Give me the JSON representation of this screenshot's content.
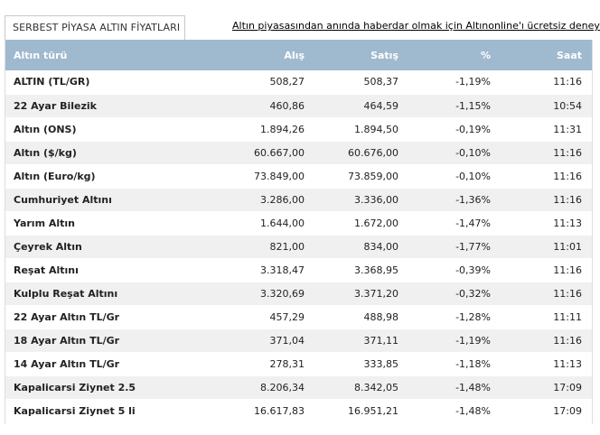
{
  "header": {
    "tab_title": "SERBEST PİYASA ALTIN FİYATLARI",
    "promo_link": "Altın piyasasından anında haberdar olmak için Altınonline'ı ücretsiz deneyin"
  },
  "table": {
    "columns": [
      "Altın türü",
      "Alış",
      "Satış",
      "%",
      "Saat"
    ],
    "rows": [
      {
        "name": "ALTIN (TL/GR)",
        "alis": "508,27",
        "satis": "508,37",
        "pct": "-1,19%",
        "saat": "11:16"
      },
      {
        "name": "22 Ayar Bilezik",
        "alis": "460,86",
        "satis": "464,59",
        "pct": "-1,15%",
        "saat": "10:54"
      },
      {
        "name": "Altın (ONS)",
        "alis": "1.894,26",
        "satis": "1.894,50",
        "pct": "-0,19%",
        "saat": "11:31"
      },
      {
        "name": "Altın ($/kg)",
        "alis": "60.667,00",
        "satis": "60.676,00",
        "pct": "-0,10%",
        "saat": "11:16"
      },
      {
        "name": "Altın (Euro/kg)",
        "alis": "73.849,00",
        "satis": "73.859,00",
        "pct": "-0,10%",
        "saat": "11:16"
      },
      {
        "name": "Cumhuriyet Altını",
        "alis": "3.286,00",
        "satis": "3.336,00",
        "pct": "-1,36%",
        "saat": "11:16"
      },
      {
        "name": "Yarım Altın",
        "alis": "1.644,00",
        "satis": "1.672,00",
        "pct": "-1,47%",
        "saat": "11:13"
      },
      {
        "name": "Çeyrek Altın",
        "alis": "821,00",
        "satis": "834,00",
        "pct": "-1,77%",
        "saat": "11:01"
      },
      {
        "name": "Reşat Altını",
        "alis": "3.318,47",
        "satis": "3.368,95",
        "pct": "-0,39%",
        "saat": "11:16"
      },
      {
        "name": "Kulplu Reşat Altını",
        "alis": "3.320,69",
        "satis": "3.371,20",
        "pct": "-0,32%",
        "saat": "11:16"
      },
      {
        "name": "22 Ayar Altın TL/Gr",
        "alis": "457,29",
        "satis": "488,98",
        "pct": "-1,28%",
        "saat": "11:11"
      },
      {
        "name": "18 Ayar Altın TL/Gr",
        "alis": "371,04",
        "satis": "371,11",
        "pct": "-1,19%",
        "saat": "11:16"
      },
      {
        "name": "14 Ayar Altın TL/Gr",
        "alis": "278,31",
        "satis": "333,85",
        "pct": "-1,18%",
        "saat": "11:13"
      },
      {
        "name": "Kapalicarsi Ziynet 2.5",
        "alis": "8.206,34",
        "satis": "8.342,05",
        "pct": "-1,48%",
        "saat": "17:09"
      },
      {
        "name": "Kapalicarsi Ziynet 5 li",
        "alis": "16.617,83",
        "satis": "16.951,21",
        "pct": "-1,48%",
        "saat": "17:09"
      }
    ]
  }
}
